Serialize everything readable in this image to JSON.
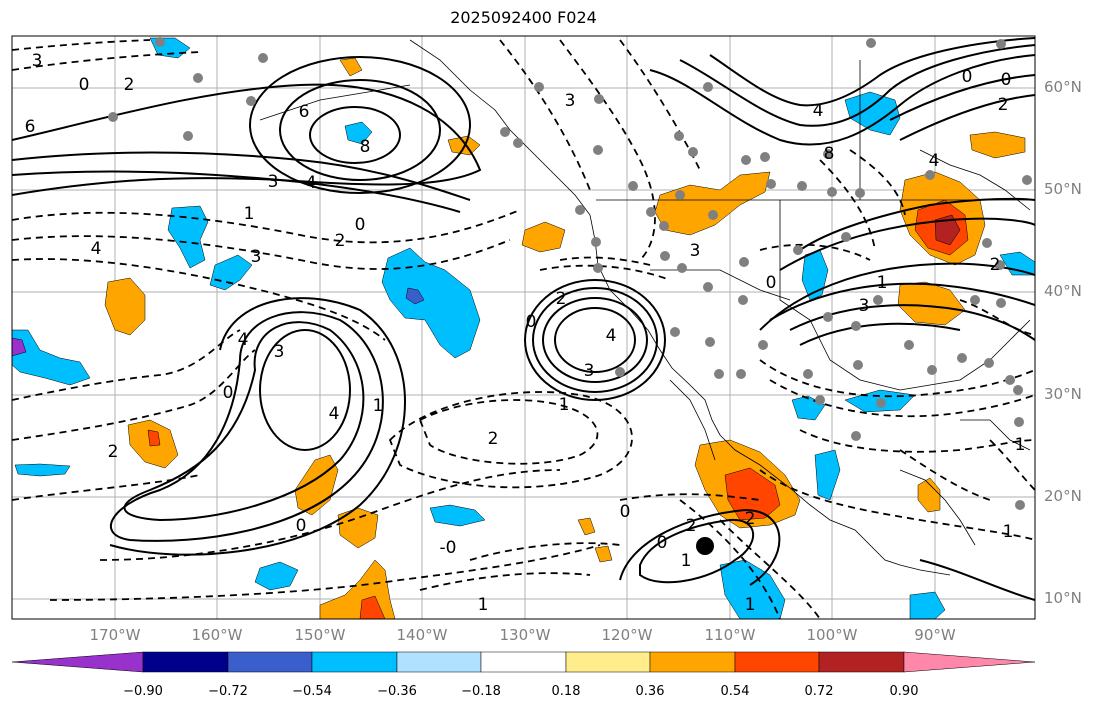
{
  "title": "2025092400 F024",
  "latitude_labels": [
    "60°N",
    "50°N",
    "40°N",
    "30°N",
    "20°N",
    "10°N"
  ],
  "longitude_labels": [
    "170°W",
    "160°W",
    "150°W",
    "140°W",
    "130°W",
    "120°W",
    "110°W",
    "100°W",
    "90°W"
  ],
  "colorbar": {
    "tick_labels": [
      "−0.90",
      "−0.72",
      "−0.54",
      "−0.36",
      "−0.18",
      "0.18",
      "0.36",
      "0.54",
      "0.72",
      "0.90"
    ],
    "colors": [
      "#9932cc",
      "#00008b",
      "#3a5fcd",
      "#00bfff",
      "#b0e2ff",
      "#ffffff",
      "#ffec8b",
      "#ffa500",
      "#ff4500",
      "#b22222",
      "#ff88aa"
    ]
  },
  "fill_colors": {
    "neg_light": "#b0e2ff",
    "neg_mid": "#00bfff",
    "neg_dark": "#3a5fcd",
    "neg_purple": "#9932cc",
    "pos_yellow": "#ffec8b",
    "pos_orange": "#ffa500",
    "pos_red": "#ff4500",
    "pos_darkred": "#b22222"
  },
  "contour_labels": [
    "0",
    "2",
    "3",
    "6",
    "8",
    "3",
    "4",
    "0",
    "1",
    "2",
    "4",
    "3",
    "4",
    "3",
    "2",
    "0",
    "1",
    "2",
    "3",
    "4",
    "0",
    "2",
    "3",
    "4",
    "0",
    "1",
    "0",
    "2",
    "0",
    "1",
    "2",
    "1",
    "0",
    "-0",
    "0",
    "1",
    "1",
    "1",
    "3",
    "4",
    "8",
    "4",
    "2",
    "0",
    "2",
    "3",
    "1",
    "6"
  ],
  "marker": {
    "name": "storm-center-marker"
  }
}
